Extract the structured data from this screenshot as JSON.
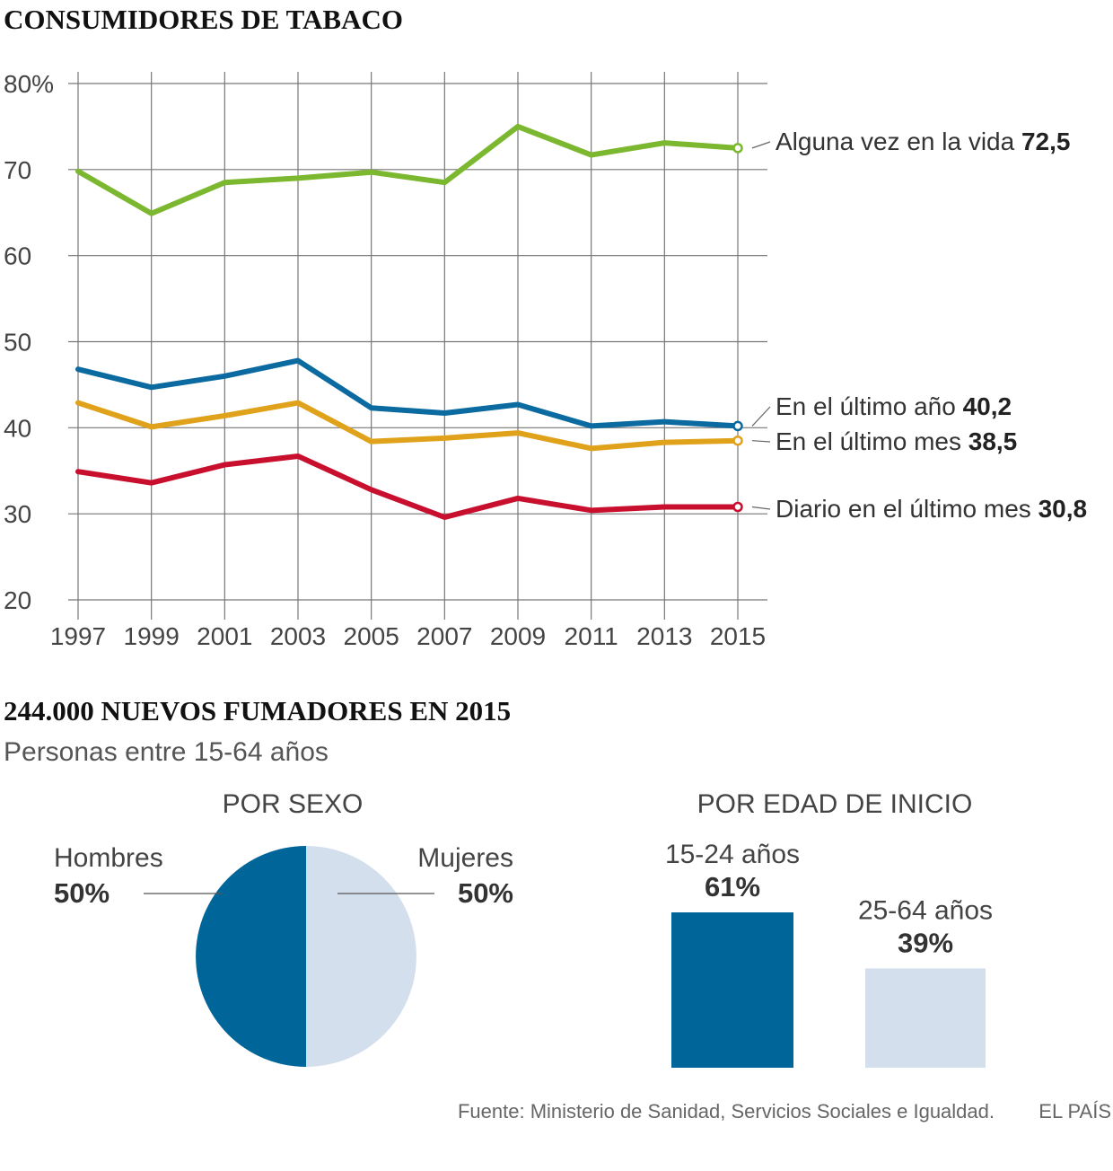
{
  "chart_data": [
    {
      "type": "line",
      "title": "CONSUMIDORES DE TABACO",
      "x": [
        "1997",
        "1999",
        "2001",
        "2003",
        "2005",
        "2007",
        "2009",
        "2011",
        "2013",
        "2015"
      ],
      "ylim": [
        20,
        80
      ],
      "yticks": [
        "80%",
        "70",
        "60",
        "50",
        "40",
        "30",
        "20"
      ],
      "series": [
        {
          "name": "Alguna vez en la vida",
          "last_label": "72,5",
          "color": "#7cb82f",
          "values": [
            69.8,
            64.9,
            68.5,
            69.0,
            69.7,
            68.5,
            75.0,
            71.7,
            73.1,
            72.5
          ]
        },
        {
          "name": "En el último año",
          "last_label": "40,2",
          "color": "#0b6aa0",
          "values": [
            46.8,
            44.7,
            46.0,
            47.8,
            42.3,
            41.7,
            42.7,
            40.2,
            40.7,
            40.2
          ]
        },
        {
          "name": "En el último mes",
          "last_label": "38,5",
          "color": "#e0a11b",
          "values": [
            42.9,
            40.1,
            41.4,
            42.9,
            38.4,
            38.8,
            39.4,
            37.6,
            38.3,
            38.5
          ]
        },
        {
          "name": "Diario en el último mes",
          "last_label": "30,8",
          "color": "#c8102e",
          "values": [
            34.9,
            33.6,
            35.7,
            36.7,
            32.8,
            29.6,
            31.8,
            30.4,
            30.8,
            30.8
          ]
        }
      ]
    },
    {
      "type": "pie",
      "title": "POR SEXO",
      "slices": [
        {
          "label": "Hombres",
          "value": 50,
          "value_label": "50%",
          "color": "#006699"
        },
        {
          "label": "Mujeres",
          "value": 50,
          "value_label": "50%",
          "color": "#d4dfee"
        }
      ]
    },
    {
      "type": "bar",
      "title": "POR EDAD DE INICIO",
      "categories": [
        "15-24 años",
        "25-64 años"
      ],
      "values": [
        61,
        39
      ],
      "value_labels": [
        "61%",
        "39%"
      ],
      "colors": [
        "#006699",
        "#d4dfee"
      ]
    }
  ],
  "section2": {
    "title": "244.000 NUEVOS FUMADORES EN 2015",
    "subtitle": "Personas entre 15-64 años"
  },
  "footer": {
    "source": "Fuente: Ministerio de Sanidad, Servicios Sociales e Igualdad.",
    "brand": "EL PAÍS"
  }
}
